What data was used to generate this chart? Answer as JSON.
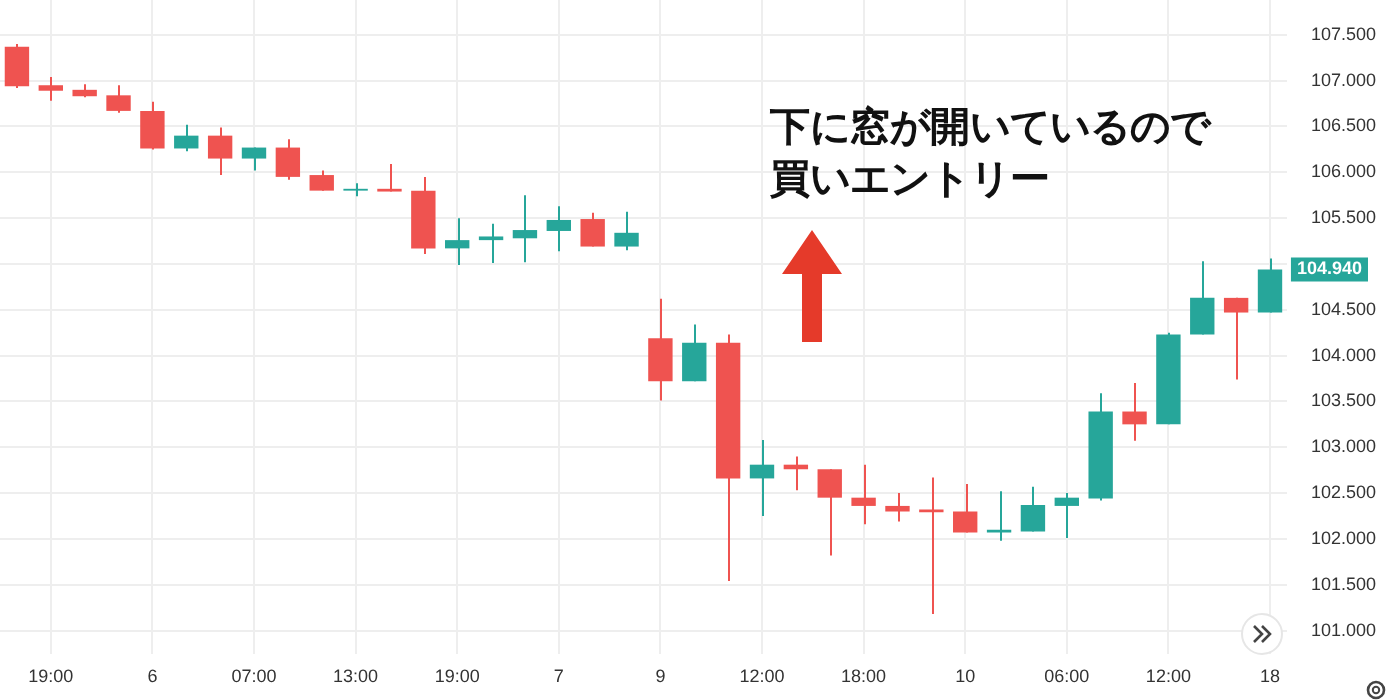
{
  "chart_data": {
    "type": "candlestick",
    "categories": [
      null,
      "19:00",
      null,
      null,
      "6",
      null,
      null,
      "07:00",
      null,
      null,
      "13:00",
      null,
      null,
      "19:00",
      null,
      null,
      "7",
      null,
      null,
      "9",
      null,
      null,
      "12:00",
      null,
      null,
      "18:00",
      null,
      null,
      "10",
      null,
      null,
      "06:00",
      null,
      null,
      "12:00",
      null,
      null,
      "18"
    ],
    "ohlc": [
      [
        107.37,
        107.4,
        106.92,
        106.94
      ],
      [
        106.95,
        107.04,
        106.78,
        106.89
      ],
      [
        106.9,
        106.96,
        106.82,
        106.83
      ],
      [
        106.84,
        106.95,
        106.65,
        106.67
      ],
      [
        106.67,
        106.77,
        106.25,
        106.26
      ],
      [
        106.26,
        106.52,
        106.23,
        106.4
      ],
      [
        106.4,
        106.49,
        105.97,
        106.15
      ],
      [
        106.15,
        106.27,
        106.02,
        106.27
      ],
      [
        106.27,
        106.36,
        105.92,
        105.95
      ],
      [
        105.97,
        106.02,
        105.8,
        105.8
      ],
      [
        105.8,
        105.88,
        105.74,
        105.82
      ],
      [
        105.82,
        106.09,
        105.79,
        105.79
      ],
      [
        105.8,
        105.95,
        105.11,
        105.17
      ],
      [
        105.17,
        105.5,
        104.99,
        105.26
      ],
      [
        105.26,
        105.44,
        105.01,
        105.3
      ],
      [
        105.28,
        105.75,
        105.02,
        105.37
      ],
      [
        105.36,
        105.63,
        105.14,
        105.48
      ],
      [
        105.49,
        105.56,
        105.19,
        105.19
      ],
      [
        105.19,
        105.57,
        105.15,
        105.34
      ],
      [
        104.19,
        104.62,
        103.51,
        103.72
      ],
      [
        103.72,
        104.34,
        103.72,
        104.14
      ],
      [
        104.14,
        104.23,
        101.54,
        102.66
      ],
      [
        102.66,
        103.08,
        102.25,
        102.81
      ],
      [
        102.81,
        102.9,
        102.53,
        102.76
      ],
      [
        102.76,
        102.76,
        101.82,
        102.45
      ],
      [
        102.45,
        102.81,
        102.16,
        102.36
      ],
      [
        102.36,
        102.5,
        102.19,
        102.3
      ],
      [
        102.32,
        102.67,
        101.18,
        102.29
      ],
      [
        102.3,
        102.6,
        102.07,
        102.07
      ],
      [
        102.07,
        102.52,
        101.98,
        102.1
      ],
      [
        102.08,
        102.57,
        102.08,
        102.37
      ],
      [
        102.36,
        102.5,
        102.01,
        102.45
      ],
      [
        102.44,
        103.59,
        102.42,
        103.39
      ],
      [
        103.39,
        103.7,
        103.07,
        103.25
      ],
      [
        103.25,
        104.25,
        103.25,
        104.23
      ],
      [
        104.23,
        105.03,
        104.23,
        104.63
      ],
      [
        104.63,
        104.63,
        103.74,
        104.47
      ],
      [
        104.47,
        105.06,
        104.47,
        104.94
      ]
    ],
    "colors": [
      "#ef5350",
      "#ef5350",
      "#ef5350",
      "#ef5350",
      "#ef5350",
      "#26a69a",
      "#ef5350",
      "#26a69a",
      "#ef5350",
      "#ef5350",
      "#26a69a",
      "#ef5350",
      "#ef5350",
      "#26a69a",
      "#26a69a",
      "#26a69a",
      "#26a69a",
      "#ef5350",
      "#26a69a",
      "#ef5350",
      "#26a69a",
      "#ef5350",
      "#26a69a",
      "#ef5350",
      "#ef5350",
      "#ef5350",
      "#ef5350",
      "#ef5350",
      "#ef5350",
      "#26a69a",
      "#26a69a",
      "#26a69a",
      "#26a69a",
      "#ef5350",
      "#26a69a",
      "#26a69a",
      "#ef5350",
      "#26a69a"
    ],
    "ylim": [
      100.74,
      107.88
    ],
    "yticks": [
      {
        "value": 101,
        "label": "101.000"
      },
      {
        "value": 101.5,
        "label": "101.500"
      },
      {
        "value": 102,
        "label": "102.000"
      },
      {
        "value": 102.5,
        "label": "102.500"
      },
      {
        "value": 103,
        "label": "103.000"
      },
      {
        "value": 103.5,
        "label": "103.500"
      },
      {
        "value": 104,
        "label": "104.000"
      },
      {
        "value": 104.5,
        "label": "104.500"
      },
      {
        "value": 105,
        "label": null
      },
      {
        "value": 105.5,
        "label": "105.500"
      },
      {
        "value": 106,
        "label": "106.000"
      },
      {
        "value": 106.5,
        "label": "106.500"
      },
      {
        "value": 107,
        "label": "107.000"
      },
      {
        "value": 107.5,
        "label": "107.500"
      }
    ],
    "grid": true,
    "annotations": [
      "下に窓が開いているので",
      "買いエントリー",
      {
        "text": "104.940",
        "y": 104.94
      }
    ]
  }
}
